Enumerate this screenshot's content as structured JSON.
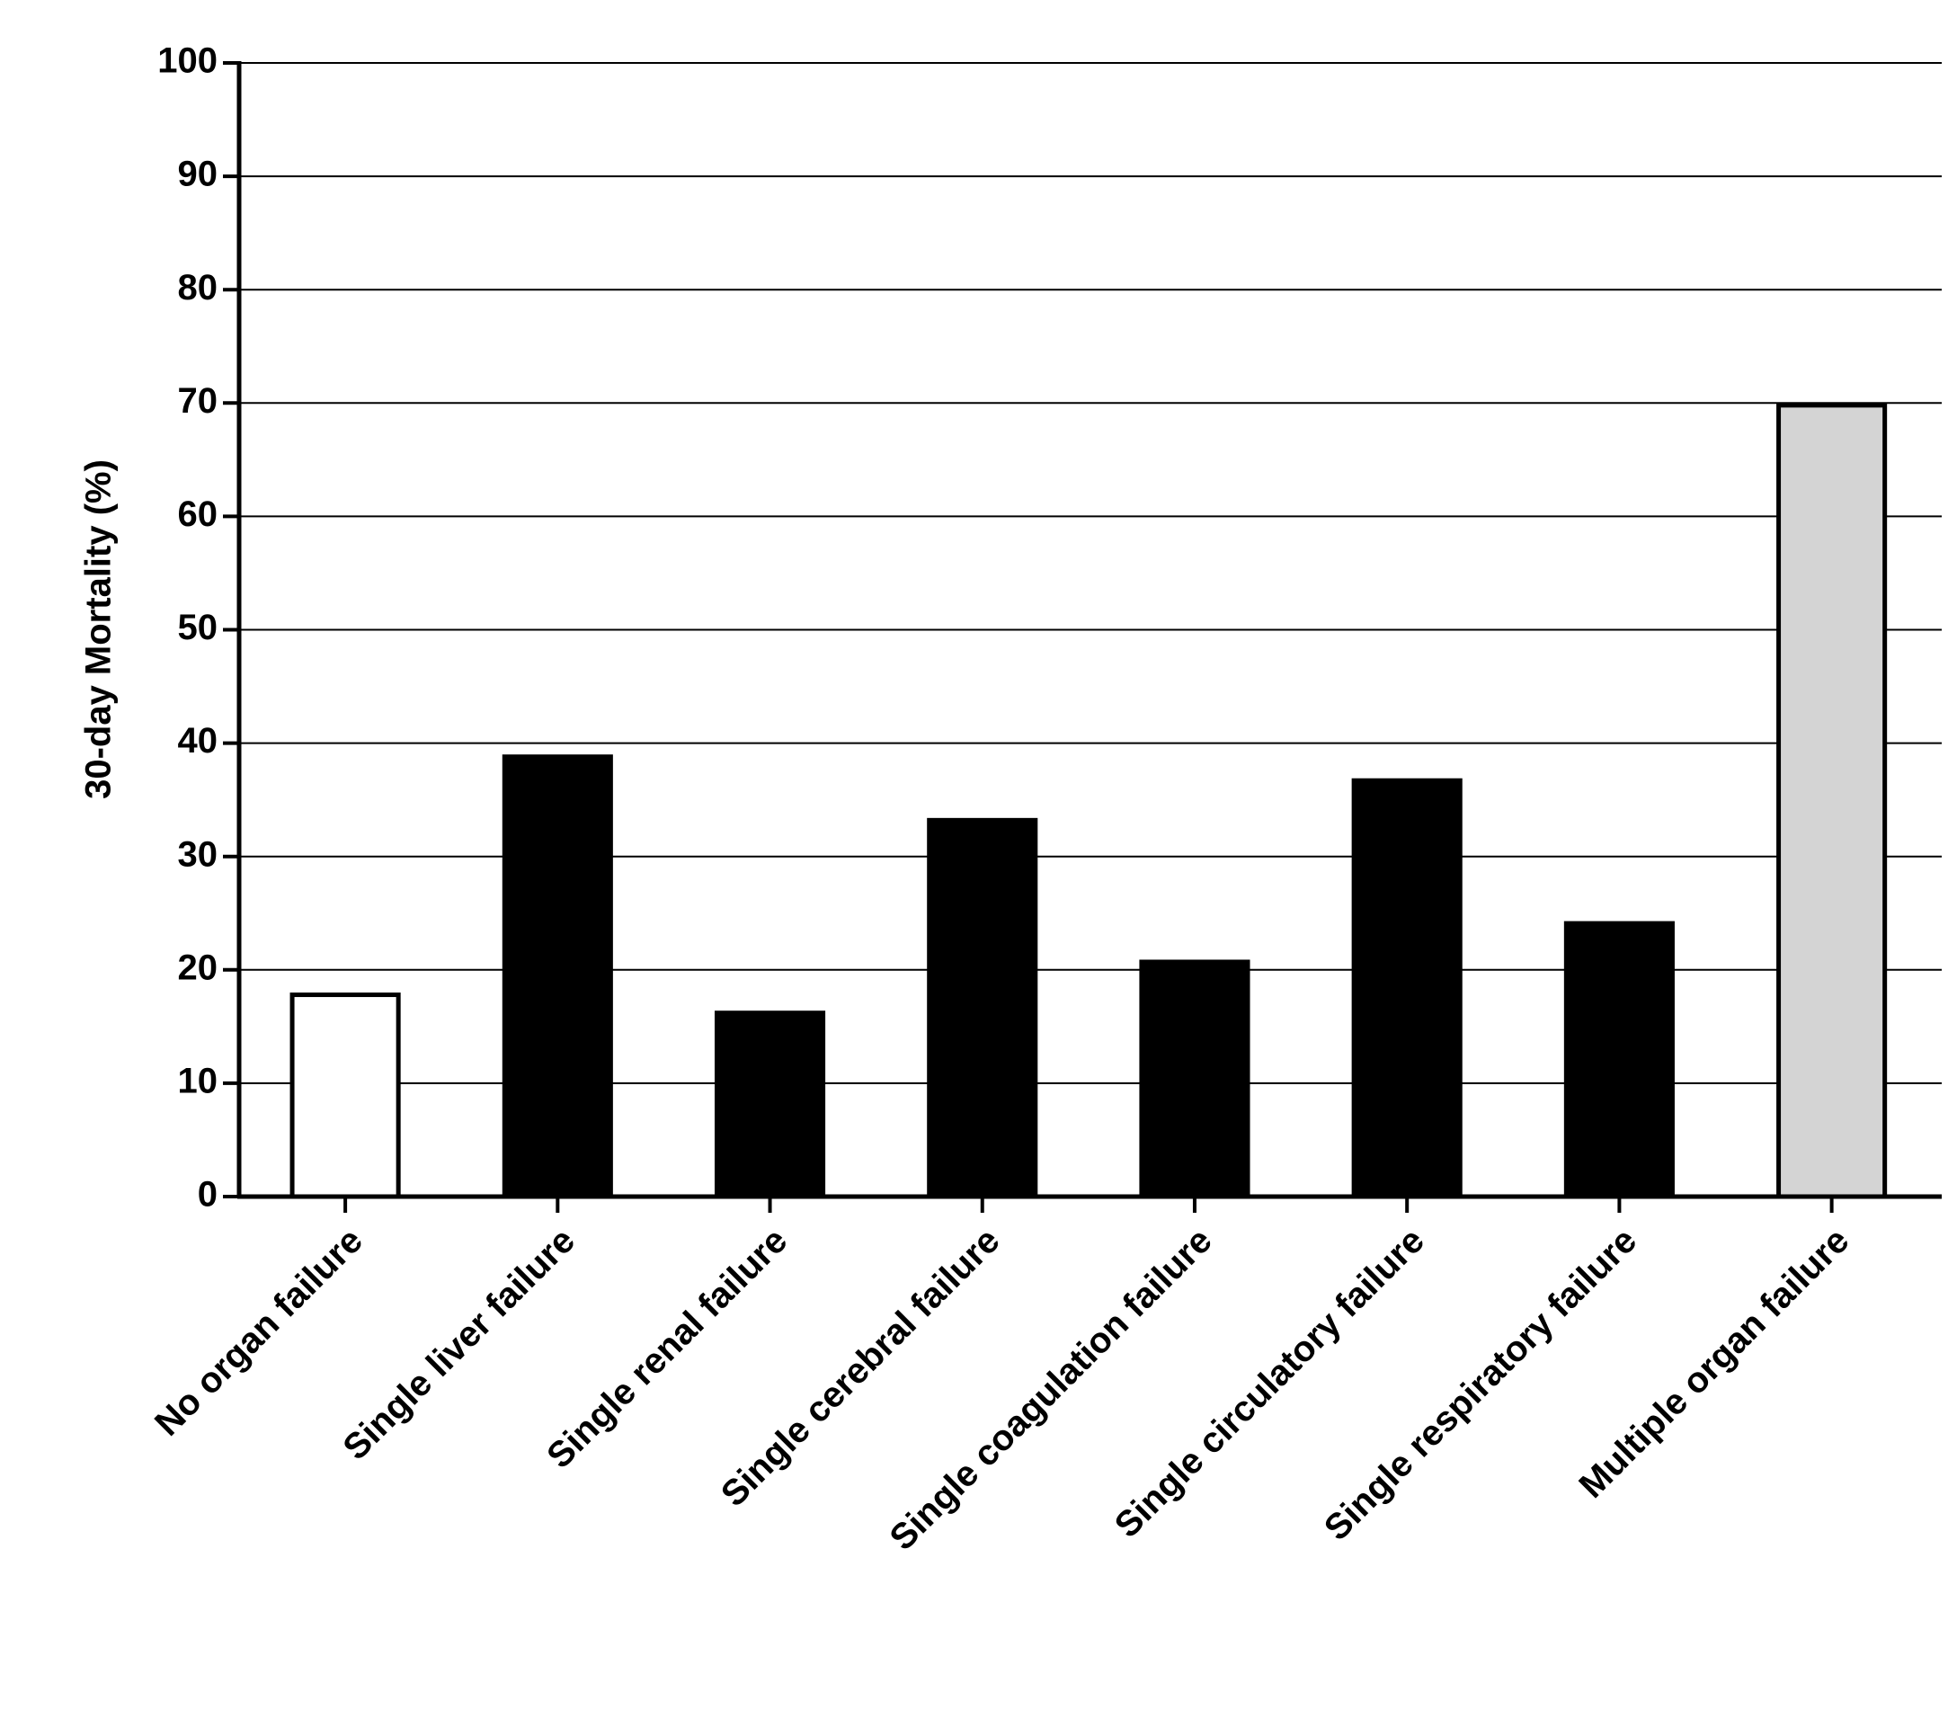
{
  "chart_data": {
    "type": "bar",
    "y_label": "30-day Mortality (%)",
    "categories": [
      "No organ failure",
      "Single liver failure",
      "Single renal failure",
      "Single cerebral failure",
      "Single coagulation failure",
      "Single circulatory failure",
      "Single respiratory failure",
      "Multiple organ failure"
    ],
    "values": [
      17.8,
      38.8,
      16.2,
      33.2,
      20.7,
      36.7,
      24.1,
      69.8
    ],
    "colors": [
      "#ffffff",
      "#000000",
      "#000000",
      "#000000",
      "#000000",
      "#000000",
      "#000000",
      "#d4d4d4"
    ],
    "ylim": [
      0,
      100
    ],
    "yticks": [
      0,
      10,
      20,
      30,
      40,
      50,
      60,
      70,
      80,
      90,
      100
    ],
    "grid": true
  }
}
